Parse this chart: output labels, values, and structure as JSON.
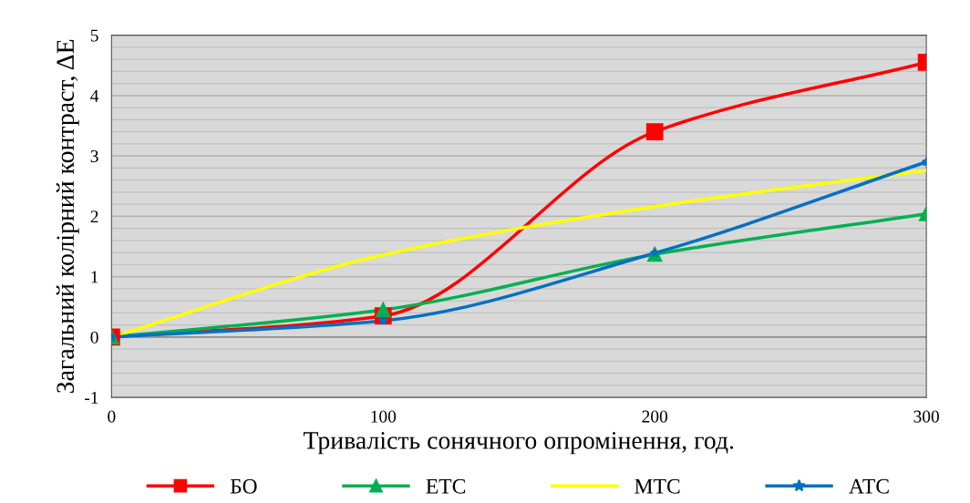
{
  "chart_data": {
    "type": "line",
    "xlabel": "Тривалість сонячного опромінення, год.",
    "ylabel": "Загальний колірний контраст, ΔЕ",
    "x": [
      0,
      100,
      200,
      300
    ],
    "series": [
      {
        "name": "БО",
        "color": "#ff0000",
        "marker": "square",
        "values": [
          0,
          0.35,
          3.4,
          4.55
        ]
      },
      {
        "name": "ЕТС",
        "color": "#00b050",
        "marker": "triangle",
        "values": [
          0,
          0.45,
          1.37,
          2.04
        ]
      },
      {
        "name": "МТС",
        "color": "#ffff00",
        "marker": "none",
        "values": [
          0,
          1.36,
          2.16,
          2.76
        ]
      },
      {
        "name": "АТС",
        "color": "#0070c0",
        "marker": "star",
        "values": [
          0,
          0.27,
          1.39,
          2.9
        ]
      }
    ],
    "xlim": [
      0,
      300
    ],
    "xticks": [
      0,
      100,
      200,
      300
    ],
    "ylim": [
      -1,
      5
    ],
    "yticks": [
      -1,
      0,
      1,
      2,
      3,
      4,
      5
    ],
    "grid": "y",
    "legend": "bottom",
    "line_style": "solid"
  }
}
